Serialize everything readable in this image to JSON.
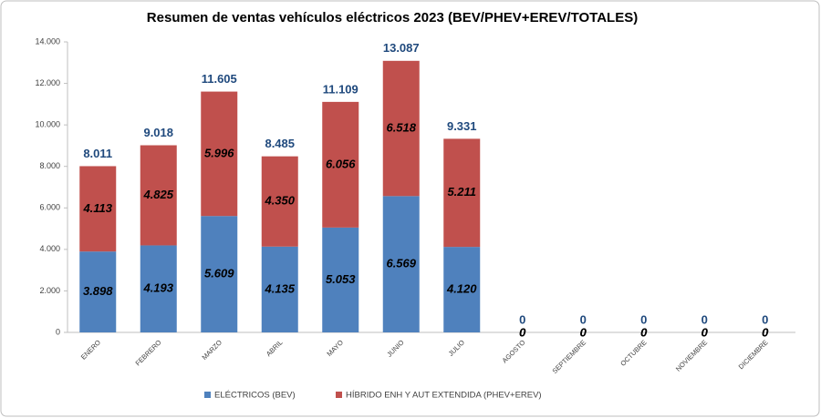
{
  "chart_data": {
    "type": "stacked_bar",
    "title": "Resumen de ventas vehículos eléctricos 2023 (BEV/PHEV+EREV/TOTALES)",
    "categories": [
      "ENERO",
      "FEBRERO",
      "MARZO",
      "ABRIL",
      "MAYO",
      "JUNIO",
      "JULIO",
      "AGOSTO",
      "SEPTIEMBRE",
      "OCTUBRE",
      "NOVIEMBRE",
      "DICIEMBRE"
    ],
    "series": [
      {
        "name": "ELÉCTRICOS (BEV)",
        "color": "#4f81bd",
        "values": [
          3898,
          4193,
          5609,
          4135,
          5053,
          6569,
          4120,
          0,
          0,
          0,
          0,
          0
        ],
        "value_labels": [
          "3.898",
          "4.193",
          "5.609",
          "4.135",
          "5.053",
          "6.569",
          "4.120",
          "0",
          "0",
          "0",
          "0",
          "0"
        ]
      },
      {
        "name": "HÍBRIDO ENH Y AUT EXTENDIDA (PHEV+EREV)",
        "color": "#c0504d",
        "values": [
          4113,
          4825,
          5996,
          4350,
          6056,
          6518,
          5211,
          0,
          0,
          0,
          0,
          0
        ],
        "value_labels": [
          "4.113",
          "4.825",
          "5.996",
          "4.350",
          "6.056",
          "6.518",
          "5.211",
          "0",
          "0",
          "0",
          "0",
          "0"
        ]
      }
    ],
    "totals": {
      "color": "#1f497d",
      "values": [
        8011,
        9018,
        11605,
        8485,
        11109,
        13087,
        9331,
        0,
        0,
        0,
        0,
        0
      ],
      "value_labels": [
        "8.011",
        "9.018",
        "11.605",
        "8.485",
        "11.109",
        "13.087",
        "9.331",
        "0",
        "0",
        "0",
        "0",
        "0"
      ]
    },
    "ylim": [
      0,
      14000
    ],
    "yticks": [
      0,
      {
        "value": 2000,
        "label": "2.000"
      },
      {
        "value": 4000,
        "label": "4.000"
      },
      {
        "value": 6000,
        "label": "6.000"
      },
      {
        "value": 8000,
        "label": "8.000"
      },
      {
        "value": 10000,
        "label": "10.000"
      },
      {
        "value": 12000,
        "label": "12.000"
      },
      {
        "value": 14000,
        "label": "14.000"
      }
    ],
    "grid": false,
    "legend": "bottom"
  }
}
